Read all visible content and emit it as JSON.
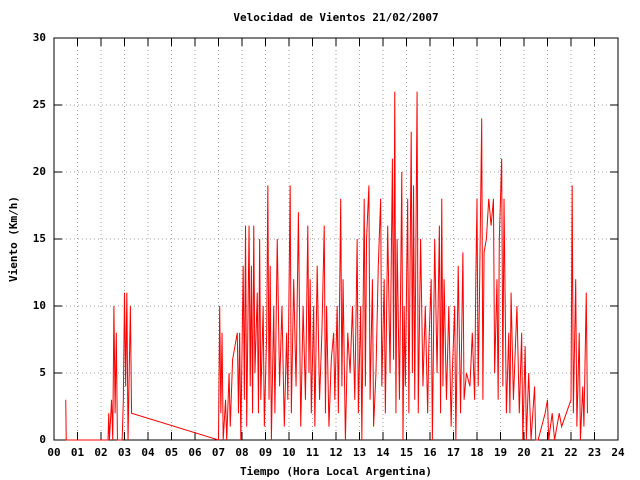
{
  "chart_data": {
    "type": "line",
    "title": "Velocidad de Vientos 21/02/2007",
    "x_label": "Tiempo (Hora Local Argentina)",
    "y_label": "Viento (Km/h)",
    "grid": true,
    "xlim": [
      0,
      24
    ],
    "ylim": [
      0,
      30
    ],
    "xticks": [
      {
        "value": 0,
        "label": "00"
      },
      {
        "value": 1,
        "label": "01"
      },
      {
        "value": 2,
        "label": "02"
      },
      {
        "value": 3,
        "label": "03"
      },
      {
        "value": 4,
        "label": "04"
      },
      {
        "value": 5,
        "label": "05"
      },
      {
        "value": 6,
        "label": "06"
      },
      {
        "value": 7,
        "label": "07"
      },
      {
        "value": 8,
        "label": "08"
      },
      {
        "value": 9,
        "label": "09"
      },
      {
        "value": 10,
        "label": "10"
      },
      {
        "value": 11,
        "label": "11"
      },
      {
        "value": 12,
        "label": "12"
      },
      {
        "value": 13,
        "label": "13"
      },
      {
        "value": 14,
        "label": "14"
      },
      {
        "value": 15,
        "label": "15"
      },
      {
        "value": 16,
        "label": "16"
      },
      {
        "value": 17,
        "label": "17"
      },
      {
        "value": 18,
        "label": "18"
      },
      {
        "value": 19,
        "label": "19"
      },
      {
        "value": 20,
        "label": "20"
      },
      {
        "value": 21,
        "label": "21"
      },
      {
        "value": 22,
        "label": "22"
      },
      {
        "value": 23,
        "label": "23"
      },
      {
        "value": 24,
        "label": "24"
      }
    ],
    "yticks": [
      0,
      5,
      10,
      15,
      20,
      25,
      30
    ],
    "series": [
      {
        "color": "#ff0000",
        "x": [
          0.5,
          0.52,
          2.3,
          2.33,
          2.36,
          2.45,
          2.5,
          2.55,
          2.6,
          2.65,
          2.7,
          2.9,
          2.95,
          3.0,
          3.05,
          3.1,
          3.15,
          3.2,
          3.25,
          3.3,
          7.0,
          7.05,
          7.1,
          7.15,
          7.2,
          7.3,
          7.35,
          7.45,
          7.5,
          7.6,
          7.7,
          7.8,
          7.85,
          7.9,
          7.95,
          8.05,
          8.1,
          8.15,
          8.2,
          8.3,
          8.35,
          8.4,
          8.45,
          8.5,
          8.55,
          8.65,
          8.7,
          8.75,
          8.8,
          8.9,
          8.95,
          9.05,
          9.1,
          9.15,
          9.2,
          9.25,
          9.35,
          9.4,
          9.5,
          9.6,
          9.7,
          9.8,
          9.9,
          9.95,
          10.05,
          10.1,
          10.2,
          10.3,
          10.4,
          10.5,
          10.6,
          10.7,
          10.8,
          10.85,
          10.9,
          10.95,
          11.05,
          11.1,
          11.2,
          11.3,
          11.4,
          11.5,
          11.55,
          11.6,
          11.7,
          11.8,
          11.9,
          11.95,
          12.05,
          12.1,
          12.2,
          12.25,
          12.3,
          12.4,
          12.5,
          12.6,
          12.7,
          12.8,
          12.9,
          12.95,
          13.05,
          13.1,
          13.2,
          13.25,
          13.3,
          13.4,
          13.45,
          13.55,
          13.6,
          13.7,
          13.8,
          13.9,
          13.95,
          14.05,
          14.1,
          14.2,
          14.3,
          14.4,
          14.45,
          14.5,
          14.55,
          14.6,
          14.7,
          14.8,
          14.85,
          14.9,
          14.95,
          15.05,
          15.1,
          15.2,
          15.25,
          15.3,
          15.35,
          15.45,
          15.5,
          15.6,
          15.7,
          15.8,
          15.9,
          15.95,
          16.05,
          16.1,
          16.2,
          16.3,
          16.4,
          16.45,
          16.5,
          16.55,
          16.6,
          16.7,
          16.8,
          16.9,
          16.95,
          17.05,
          17.1,
          17.2,
          17.3,
          17.4,
          17.45,
          17.55,
          17.7,
          17.8,
          17.9,
          17.95,
          18.0,
          18.05,
          18.1,
          18.2,
          18.25,
          18.3,
          18.4,
          18.5,
          18.6,
          18.7,
          18.75,
          18.85,
          18.9,
          18.95,
          19.05,
          19.1,
          19.15,
          19.2,
          19.25,
          19.35,
          19.4,
          19.45,
          19.55,
          19.7,
          19.8,
          19.9,
          19.95,
          20.05,
          20.1,
          20.2,
          20.3,
          20.45,
          20.5,
          20.6,
          20.9,
          21.0,
          21.05,
          21.2,
          21.3,
          21.5,
          21.6,
          22.0,
          22.05,
          22.1,
          22.2,
          22.25,
          22.35,
          22.4,
          22.5,
          22.55,
          22.65,
          22.7
        ],
        "values": [
          3,
          0,
          0,
          2,
          0,
          3,
          0,
          10,
          2,
          8,
          0,
          0,
          3,
          11,
          4,
          11,
          0,
          5,
          10,
          2,
          0,
          10,
          2,
          8,
          0,
          3,
          0,
          5,
          1,
          6,
          7,
          8,
          2,
          8,
          0,
          13,
          3,
          16,
          1,
          16,
          4,
          13,
          2,
          16,
          5,
          11,
          2,
          15,
          3,
          10,
          1,
          8,
          19,
          3,
          13,
          0,
          10,
          2,
          15,
          4,
          10,
          1,
          8,
          3,
          19,
          2,
          12,
          4,
          17,
          1,
          10,
          3,
          16,
          5,
          12,
          2,
          10,
          1,
          13,
          3,
          8,
          16,
          2,
          10,
          1,
          6,
          8,
          3,
          10,
          2,
          18,
          4,
          12,
          0,
          8,
          5,
          10,
          3,
          15,
          2,
          10,
          0,
          18,
          4,
          15,
          19,
          3,
          12,
          1,
          5,
          13,
          18,
          4,
          12,
          2,
          16,
          5,
          21,
          6,
          26,
          2,
          15,
          3,
          20,
          0,
          10,
          4,
          18,
          2,
          23,
          5,
          19,
          3,
          26,
          2,
          15,
          4,
          10,
          2,
          7,
          12,
          0,
          15,
          5,
          16,
          2,
          18,
          4,
          12,
          3,
          10,
          1,
          5,
          10,
          0,
          13,
          2,
          14,
          3,
          5,
          4,
          8,
          3,
          12,
          18,
          4,
          10,
          24,
          3,
          14,
          15,
          18,
          16,
          18,
          5,
          12,
          3,
          15,
          21,
          4,
          18,
          10,
          2,
          8,
          2,
          11,
          3,
          10,
          2,
          8,
          0,
          7,
          0,
          5,
          0,
          4,
          0,
          0,
          2,
          3,
          0,
          2,
          0,
          2,
          1,
          3,
          19,
          2,
          12,
          1,
          8,
          0,
          4,
          1,
          11,
          2
        ]
      }
    ]
  }
}
